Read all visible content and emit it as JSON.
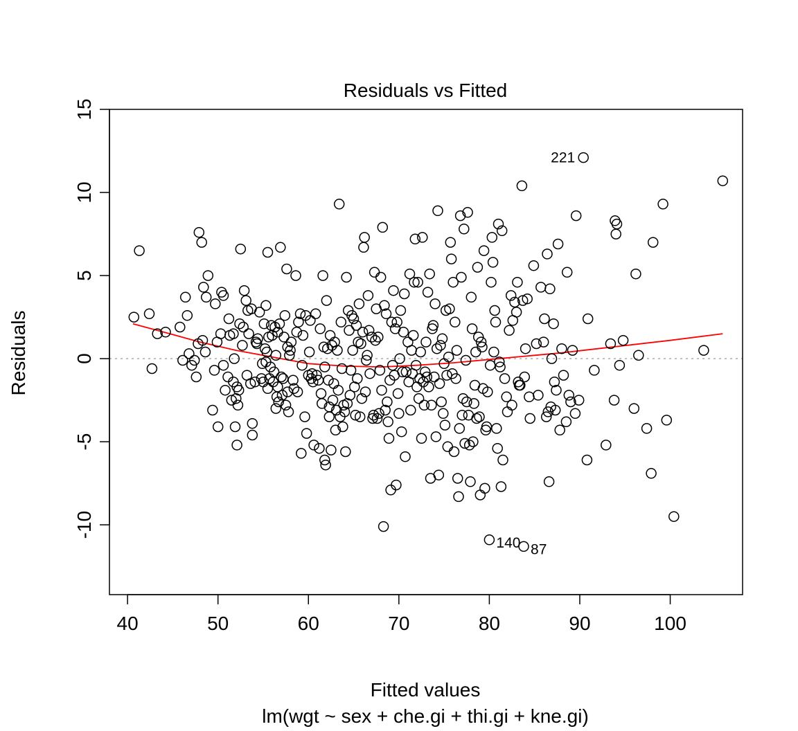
{
  "chart_data": {
    "type": "scatter",
    "title": "Residuals vs Fitted",
    "xlabel": "Fitted values",
    "subtitle": "lm(wgt ~ sex + che.gi + thi.gi + kne.gi)",
    "ylabel": "Residuals",
    "xlim": [
      38,
      108
    ],
    "ylim": [
      -14.2,
      15
    ],
    "xticks": [
      40,
      50,
      60,
      70,
      80,
      90,
      100
    ],
    "yticks": [
      -10,
      -5,
      0,
      5,
      10,
      15
    ],
    "reference_line": {
      "y": 0,
      "style": "dotted",
      "color": "#a0a0a0"
    },
    "grid": false,
    "legend": "none",
    "point_style": "open-circle",
    "colors": {
      "points": "#000000",
      "smooth": "#ff0000",
      "axes": "#000000"
    },
    "labeled_points": [
      {
        "label": "221",
        "x": 90.4,
        "y": 12.1
      },
      {
        "label": "140",
        "x": 80.0,
        "y": -10.9
      },
      {
        "label": "87",
        "x": 83.8,
        "y": -11.3
      }
    ],
    "smooth_line": [
      [
        40.6,
        2.1
      ],
      [
        44,
        1.6
      ],
      [
        48,
        1.0
      ],
      [
        52,
        0.5
      ],
      [
        56,
        0.1
      ],
      [
        60,
        -0.3
      ],
      [
        64,
        -0.45
      ],
      [
        68,
        -0.5
      ],
      [
        72,
        -0.4
      ],
      [
        76,
        -0.25
      ],
      [
        80,
        -0.05
      ],
      [
        84,
        0.15
      ],
      [
        88,
        0.35
      ],
      [
        92,
        0.6
      ],
      [
        96,
        0.85
      ],
      [
        100,
        1.1
      ],
      [
        105.8,
        1.5
      ]
    ],
    "points": [
      [
        40.7,
        2.5
      ],
      [
        41.3,
        6.5
      ],
      [
        42.4,
        2.7
      ],
      [
        42.7,
        -0.6
      ],
      [
        43.3,
        1.5
      ],
      [
        44.2,
        1.6
      ],
      [
        45.8,
        1.9
      ],
      [
        46.1,
        -0.1
      ],
      [
        46.4,
        3.7
      ],
      [
        46.6,
        2.6
      ],
      [
        46.8,
        0.3
      ],
      [
        47.1,
        -0.4
      ],
      [
        47.4,
        -0.1
      ],
      [
        47.6,
        -1.1
      ],
      [
        47.8,
        0.9
      ],
      [
        47.9,
        7.6
      ],
      [
        48.2,
        7.0
      ],
      [
        48.3,
        1.1
      ],
      [
        48.4,
        4.3
      ],
      [
        48.6,
        0.4
      ],
      [
        48.7,
        3.7
      ],
      [
        48.9,
        5.0
      ],
      [
        49.4,
        -3.1
      ],
      [
        49.6,
        -0.7
      ],
      [
        49.7,
        3.3
      ],
      [
        49.9,
        1.0
      ],
      [
        50.0,
        -4.1
      ],
      [
        50.3,
        1.5
      ],
      [
        50.4,
        4.0
      ],
      [
        50.6,
        3.8
      ],
      [
        50.6,
        -0.4
      ],
      [
        50.8,
        -1.9
      ],
      [
        51.1,
        -1.1
      ],
      [
        51.2,
        2.4
      ],
      [
        51.3,
        1.4
      ],
      [
        51.5,
        -2.5
      ],
      [
        51.7,
        -1.4
      ],
      [
        51.7,
        1.5
      ],
      [
        51.8,
        0.0
      ],
      [
        51.9,
        -4.1
      ],
      [
        52.0,
        -2.4
      ],
      [
        52.1,
        -1.7
      ],
      [
        52.1,
        -5.2
      ],
      [
        52.2,
        -2.8
      ],
      [
        52.3,
        -1.9
      ],
      [
        52.4,
        2.1
      ],
      [
        52.5,
        6.6
      ],
      [
        52.7,
        0.8
      ],
      [
        52.8,
        1.9
      ],
      [
        52.9,
        4.1
      ],
      [
        53.1,
        3.5
      ],
      [
        53.2,
        -1.0
      ],
      [
        53.3,
        2.9
      ],
      [
        53.4,
        1.5
      ],
      [
        53.6,
        -1.5
      ],
      [
        53.7,
        3.0
      ],
      [
        53.8,
        -3.9
      ],
      [
        53.8,
        -4.6
      ],
      [
        54.1,
        -1.4
      ],
      [
        54.2,
        1.0
      ],
      [
        54.3,
        0.9
      ],
      [
        54.4,
        1.2
      ],
      [
        54.6,
        2.8
      ],
      [
        54.8,
        -1.2
      ],
      [
        54.9,
        -0.3
      ],
      [
        55.0,
        -1.4
      ],
      [
        55.1,
        2.1
      ],
      [
        55.2,
        0.6
      ],
      [
        55.3,
        -0.2
      ],
      [
        55.3,
        3.2
      ],
      [
        55.4,
        0.4
      ],
      [
        55.5,
        -1.8
      ],
      [
        55.5,
        6.4
      ],
      [
        55.6,
        1.3
      ],
      [
        55.7,
        -1.2
      ],
      [
        55.8,
        -0.5
      ],
      [
        55.9,
        2.0
      ],
      [
        56.0,
        1.4
      ],
      [
        56.1,
        -1.4
      ],
      [
        56.2,
        -0.8
      ],
      [
        56.3,
        1.9
      ],
      [
        56.4,
        -3.0
      ],
      [
        56.4,
        0.2
      ],
      [
        56.5,
        -2.3
      ],
      [
        56.6,
        -1.7
      ],
      [
        56.6,
        1.6
      ],
      [
        56.7,
        -2.6
      ],
      [
        56.8,
        2.1
      ],
      [
        56.9,
        6.7
      ],
      [
        57.0,
        -1.1
      ],
      [
        57.1,
        -2.2
      ],
      [
        57.2,
        -1.2
      ],
      [
        57.3,
        1.3
      ],
      [
        57.4,
        2.6
      ],
      [
        57.5,
        -2.8
      ],
      [
        57.6,
        5.4
      ],
      [
        57.7,
        -2.0
      ],
      [
        57.7,
        0.7
      ],
      [
        57.8,
        -3.2
      ],
      [
        57.9,
        0.2
      ],
      [
        58.0,
        0.5
      ],
      [
        58.1,
        1.0
      ],
      [
        58.3,
        -1.3
      ],
      [
        58.4,
        -1.8
      ],
      [
        58.6,
        5.0
      ],
      [
        58.7,
        1.6
      ],
      [
        58.8,
        -2.0
      ],
      [
        58.9,
        2.2
      ],
      [
        59.1,
        2.7
      ],
      [
        59.2,
        -5.7
      ],
      [
        59.3,
        -0.4
      ],
      [
        59.4,
        1.4
      ],
      [
        59.6,
        -3.5
      ],
      [
        59.7,
        2.6
      ],
      [
        59.8,
        -4.5
      ],
      [
        60.0,
        -1.0
      ],
      [
        60.1,
        0.4
      ],
      [
        60.2,
        2.3
      ],
      [
        60.3,
        -1.2
      ],
      [
        60.4,
        -0.9
      ],
      [
        60.5,
        -1.4
      ],
      [
        60.6,
        -5.2
      ],
      [
        60.8,
        2.7
      ],
      [
        60.9,
        -1.0
      ],
      [
        61.1,
        -1.3
      ],
      [
        61.2,
        -5.4
      ],
      [
        61.3,
        1.8
      ],
      [
        61.4,
        -2.1
      ],
      [
        61.5,
        -2.7
      ],
      [
        61.6,
        5.0
      ],
      [
        61.7,
        0.7
      ],
      [
        61.8,
        -0.5
      ],
      [
        61.8,
        -6.1
      ],
      [
        61.9,
        -6.4
      ],
      [
        62.0,
        3.5
      ],
      [
        62.1,
        0.6
      ],
      [
        62.2,
        -1.3
      ],
      [
        62.3,
        -2.9
      ],
      [
        62.3,
        -3.5
      ],
      [
        62.4,
        1.4
      ],
      [
        62.5,
        -5.5
      ],
      [
        62.6,
        0.8
      ],
      [
        62.7,
        -2.5
      ],
      [
        62.8,
        -1.5
      ],
      [
        62.9,
        1.0
      ],
      [
        63.0,
        -4.3
      ],
      [
        63.1,
        -3.1
      ],
      [
        63.2,
        0.5
      ],
      [
        63.3,
        -1.9
      ],
      [
        63.4,
        9.3
      ],
      [
        63.5,
        -3.5
      ],
      [
        63.6,
        2.2
      ],
      [
        63.7,
        -0.6
      ],
      [
        63.8,
        -4.1
      ],
      [
        63.9,
        -2.8
      ],
      [
        64.0,
        -3.2
      ],
      [
        64.1,
        -5.6
      ],
      [
        64.2,
        4.9
      ],
      [
        64.3,
        -2.7
      ],
      [
        64.4,
        2.9
      ],
      [
        64.5,
        1.7
      ],
      [
        64.6,
        -2.2
      ],
      [
        64.7,
        -0.7
      ],
      [
        64.8,
        2.6
      ],
      [
        64.9,
        0.5
      ],
      [
        65.0,
        2.4
      ],
      [
        65.1,
        -1.7
      ],
      [
        65.2,
        -3.4
      ],
      [
        65.3,
        2.0
      ],
      [
        65.4,
        -1.2
      ],
      [
        65.5,
        1.0
      ],
      [
        65.6,
        3.3
      ],
      [
        65.7,
        -3.5
      ],
      [
        65.8,
        0.9
      ],
      [
        65.9,
        -2.4
      ],
      [
        66.0,
        1.6
      ],
      [
        66.1,
        6.7
      ],
      [
        66.2,
        7.3
      ],
      [
        66.3,
        -2.0
      ],
      [
        66.4,
        -0.1
      ],
      [
        66.5,
        0.2
      ],
      [
        66.6,
        3.8
      ],
      [
        66.7,
        1.7
      ],
      [
        66.8,
        -0.9
      ],
      [
        67.0,
        1.3
      ],
      [
        67.1,
        -3.6
      ],
      [
        67.2,
        -3.4
      ],
      [
        67.3,
        5.2
      ],
      [
        67.4,
        1.1
      ],
      [
        67.5,
        3.0
      ],
      [
        67.6,
        -3.6
      ],
      [
        67.7,
        1.3
      ],
      [
        67.8,
        -3.3
      ],
      [
        67.9,
        -0.7
      ],
      [
        68.0,
        4.9
      ],
      [
        68.1,
        -1.9
      ],
      [
        68.2,
        7.9
      ],
      [
        68.3,
        -10.1
      ],
      [
        68.4,
        3.2
      ],
      [
        68.5,
        -3.1
      ],
      [
        68.6,
        2.7
      ],
      [
        68.7,
        -2.6
      ],
      [
        68.8,
        -3.8
      ],
      [
        68.9,
        -4.8
      ],
      [
        69.0,
        -1.3
      ],
      [
        69.1,
        -7.9
      ],
      [
        69.2,
        2.2
      ],
      [
        69.3,
        -0.4
      ],
      [
        69.4,
        4.1
      ],
      [
        69.5,
        -1.0
      ],
      [
        69.6,
        1.8
      ],
      [
        69.7,
        -7.6
      ],
      [
        69.8,
        2.2
      ],
      [
        69.9,
        -2.1
      ],
      [
        70.0,
        -3.3
      ],
      [
        70.1,
        0.0
      ],
      [
        70.2,
        2.9
      ],
      [
        70.3,
        -4.4
      ],
      [
        70.4,
        -0.8
      ],
      [
        70.5,
        1.6
      ],
      [
        70.6,
        3.9
      ],
      [
        70.7,
        -5.9
      ],
      [
        70.8,
        -0.8
      ],
      [
        71.0,
        1.0
      ],
      [
        71.1,
        -1.4
      ],
      [
        71.2,
        5.1
      ],
      [
        71.3,
        -3.1
      ],
      [
        71.4,
        0.5
      ],
      [
        71.5,
        -0.9
      ],
      [
        71.6,
        1.4
      ],
      [
        71.7,
        4.6
      ],
      [
        71.8,
        7.2
      ],
      [
        71.9,
        -0.4
      ],
      [
        72.0,
        -1.7
      ],
      [
        72.1,
        4.6
      ],
      [
        72.2,
        -2.4
      ],
      [
        72.3,
        -1.2
      ],
      [
        72.4,
        0.4
      ],
      [
        72.5,
        -4.8
      ],
      [
        72.6,
        7.3
      ],
      [
        72.7,
        -1.4
      ],
      [
        72.8,
        -2.8
      ],
      [
        72.9,
        -0.8
      ],
      [
        73.0,
        1.0
      ],
      [
        73.1,
        -1.1
      ],
      [
        73.2,
        4.0
      ],
      [
        73.3,
        -1.7
      ],
      [
        73.4,
        5.1
      ],
      [
        73.5,
        -7.2
      ],
      [
        73.6,
        -2.8
      ],
      [
        73.7,
        1.8
      ],
      [
        73.8,
        2.0
      ],
      [
        73.9,
        -1.1
      ],
      [
        74.0,
        3.3
      ],
      [
        74.1,
        -4.7
      ],
      [
        74.2,
        0.6
      ],
      [
        74.3,
        8.9
      ],
      [
        74.4,
        -7.0
      ],
      [
        74.5,
        -1.5
      ],
      [
        74.6,
        0.8
      ],
      [
        74.7,
        -2.6
      ],
      [
        74.8,
        1.2
      ],
      [
        74.9,
        -3.3
      ],
      [
        75.0,
        -0.3
      ],
      [
        75.1,
        -4.0
      ],
      [
        75.2,
        2.9
      ],
      [
        75.3,
        -1.0
      ],
      [
        75.4,
        -5.3
      ],
      [
        75.5,
        0.1
      ],
      [
        75.6,
        3.0
      ],
      [
        75.7,
        7.0
      ],
      [
        75.8,
        6.0
      ],
      [
        75.9,
        -0.9
      ],
      [
        76.0,
        4.6
      ],
      [
        76.1,
        -5.6
      ],
      [
        76.2,
        2.2
      ],
      [
        76.3,
        -1.2
      ],
      [
        76.4,
        0.5
      ],
      [
        76.5,
        -7.2
      ],
      [
        76.6,
        -8.3
      ],
      [
        76.7,
        -4.2
      ],
      [
        76.8,
        8.6
      ],
      [
        76.9,
        4.9
      ],
      [
        77.0,
        -3.4
      ],
      [
        77.1,
        -2.4
      ],
      [
        77.2,
        7.8
      ],
      [
        77.3,
        -5.1
      ],
      [
        77.4,
        -0.1
      ],
      [
        77.5,
        -2.6
      ],
      [
        77.6,
        8.8
      ],
      [
        77.7,
        -3.4
      ],
      [
        77.8,
        -5.2
      ],
      [
        77.9,
        -7.4
      ],
      [
        78.0,
        3.7
      ],
      [
        78.1,
        1.8
      ],
      [
        78.2,
        -5.0
      ],
      [
        78.3,
        -2.7
      ],
      [
        78.4,
        -1.6
      ],
      [
        78.5,
        0.4
      ],
      [
        78.6,
        -3.6
      ],
      [
        78.7,
        5.5
      ],
      [
        78.8,
        1.3
      ],
      [
        78.9,
        -3.5
      ],
      [
        79.0,
        -8.2
      ],
      [
        79.1,
        1.0
      ],
      [
        79.2,
        0.7
      ],
      [
        79.3,
        -1.8
      ],
      [
        79.4,
        6.5
      ],
      [
        79.5,
        -7.8
      ],
      [
        79.6,
        -4.3
      ],
      [
        79.7,
        -4.1
      ],
      [
        79.8,
        -2.0
      ],
      [
        80.0,
        -10.9
      ],
      [
        80.1,
        -0.4
      ],
      [
        80.2,
        4.6
      ],
      [
        80.3,
        7.3
      ],
      [
        80.4,
        5.8
      ],
      [
        80.5,
        0.4
      ],
      [
        80.6,
        2.9
      ],
      [
        80.7,
        2.2
      ],
      [
        80.8,
        -4.2
      ],
      [
        80.9,
        -5.4
      ],
      [
        81.0,
        8.1
      ],
      [
        81.1,
        -0.2
      ],
      [
        81.2,
        -0.5
      ],
      [
        81.3,
        -7.7
      ],
      [
        81.4,
        7.7
      ],
      [
        81.5,
        -6.1
      ],
      [
        81.7,
        -1.2
      ],
      [
        81.9,
        -2.3
      ],
      [
        82.0,
        -3.2
      ],
      [
        82.2,
        1.7
      ],
      [
        82.4,
        3.8
      ],
      [
        82.5,
        -2.8
      ],
      [
        82.6,
        2.3
      ],
      [
        82.8,
        3.4
      ],
      [
        83.0,
        2.8
      ],
      [
        83.1,
        4.6
      ],
      [
        83.2,
        -1.4
      ],
      [
        83.3,
        -1.6
      ],
      [
        83.4,
        -1.6
      ],
      [
        83.6,
        10.4
      ],
      [
        83.7,
        3.5
      ],
      [
        83.8,
        -11.3
      ],
      [
        83.9,
        -1.1
      ],
      [
        84.0,
        0.6
      ],
      [
        84.2,
        3.6
      ],
      [
        84.4,
        -2.3
      ],
      [
        84.5,
        -3.6
      ],
      [
        84.9,
        5.6
      ],
      [
        85.2,
        0.9
      ],
      [
        85.4,
        -2.2
      ],
      [
        85.7,
        4.3
      ],
      [
        86.0,
        1.0
      ],
      [
        86.1,
        2.4
      ],
      [
        86.3,
        -3.5
      ],
      [
        86.4,
        6.3
      ],
      [
        86.5,
        -3.2
      ],
      [
        86.6,
        -7.4
      ],
      [
        86.7,
        4.2
      ],
      [
        86.8,
        -2.9
      ],
      [
        86.9,
        0.0
      ],
      [
        87.1,
        2.1
      ],
      [
        87.2,
        -1.4
      ],
      [
        87.3,
        -3.1
      ],
      [
        87.4,
        -1.9
      ],
      [
        87.6,
        6.9
      ],
      [
        87.8,
        -4.3
      ],
      [
        88.0,
        0.6
      ],
      [
        88.2,
        -1.0
      ],
      [
        88.5,
        -3.8
      ],
      [
        88.6,
        5.2
      ],
      [
        88.8,
        -2.2
      ],
      [
        89.0,
        -2.6
      ],
      [
        89.2,
        0.5
      ],
      [
        89.5,
        -3.3
      ],
      [
        89.6,
        8.6
      ],
      [
        89.9,
        -2.5
      ],
      [
        90.4,
        12.1
      ],
      [
        90.8,
        -6.1
      ],
      [
        90.9,
        2.4
      ],
      [
        91.6,
        -0.7
      ],
      [
        92.9,
        -5.2
      ],
      [
        93.4,
        0.9
      ],
      [
        93.8,
        -2.5
      ],
      [
        93.9,
        8.3
      ],
      [
        94.0,
        7.5
      ],
      [
        94.1,
        8.1
      ],
      [
        94.4,
        -0.4
      ],
      [
        94.8,
        1.1
      ],
      [
        96.0,
        -3.0
      ],
      [
        96.2,
        5.1
      ],
      [
        96.5,
        0.2
      ],
      [
        97.4,
        -4.2
      ],
      [
        97.9,
        -6.9
      ],
      [
        98.1,
        7.0
      ],
      [
        99.2,
        9.3
      ],
      [
        99.6,
        -3.7
      ],
      [
        100.4,
        -9.5
      ],
      [
        103.7,
        0.5
      ],
      [
        105.8,
        10.7
      ]
    ]
  }
}
